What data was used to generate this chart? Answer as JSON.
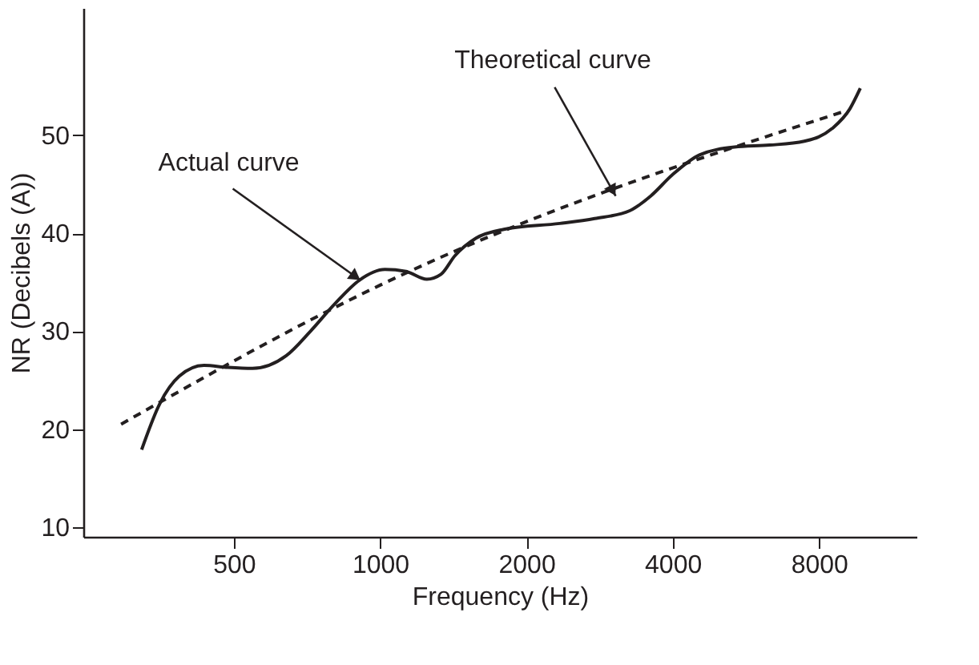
{
  "chart_data": {
    "type": "line",
    "xlabel": "Frequency (Hz)",
    "ylabel": "NR (Decibels (A))",
    "log": "x",
    "xlim": [
      245,
      12700
    ],
    "xticks": [
      500,
      1000,
      2000,
      4000,
      8000
    ],
    "ylim": [
      9,
      63
    ],
    "yticks": [
      10,
      20,
      30,
      40,
      50
    ],
    "grid": false,
    "marker": "none",
    "series": [
      {
        "color": "#231f20",
        "line_style": "solid",
        "x": [
          323,
          352,
          386,
          434,
          486,
          546,
          641,
          719,
          807,
          906,
          1023,
          1130,
          1248,
          1334,
          1425,
          1575,
          1797,
          2343,
          2764,
          3263,
          3603,
          4000,
          4541,
          5360,
          6330,
          7464,
          8518,
          9260,
          9730
        ],
        "values": [
          17.9,
          22.6,
          25.4,
          26.5,
          26.3,
          26.2,
          27.5,
          30.0,
          32.8,
          35.2,
          36.3,
          36.1,
          35.3,
          35.8,
          37.7,
          39.5,
          40.4,
          41.0,
          41.5,
          42.3,
          43.8,
          46.0,
          48.0,
          48.8,
          49.0,
          49.4,
          50.7,
          52.7,
          54.8
        ]
      },
      {
        "color": "#231f20",
        "line_style": "dashed",
        "x": [
          293,
          1000,
          8957
        ],
        "values": [
          20.5,
          34.7,
          52.4
        ]
      }
    ],
    "annotations": [
      {
        "text": "Actual curve",
        "x": 911,
        "y": 35.2
      },
      {
        "text": "Theoretical curve",
        "x": 3053,
        "y": 43.8
      }
    ]
  }
}
